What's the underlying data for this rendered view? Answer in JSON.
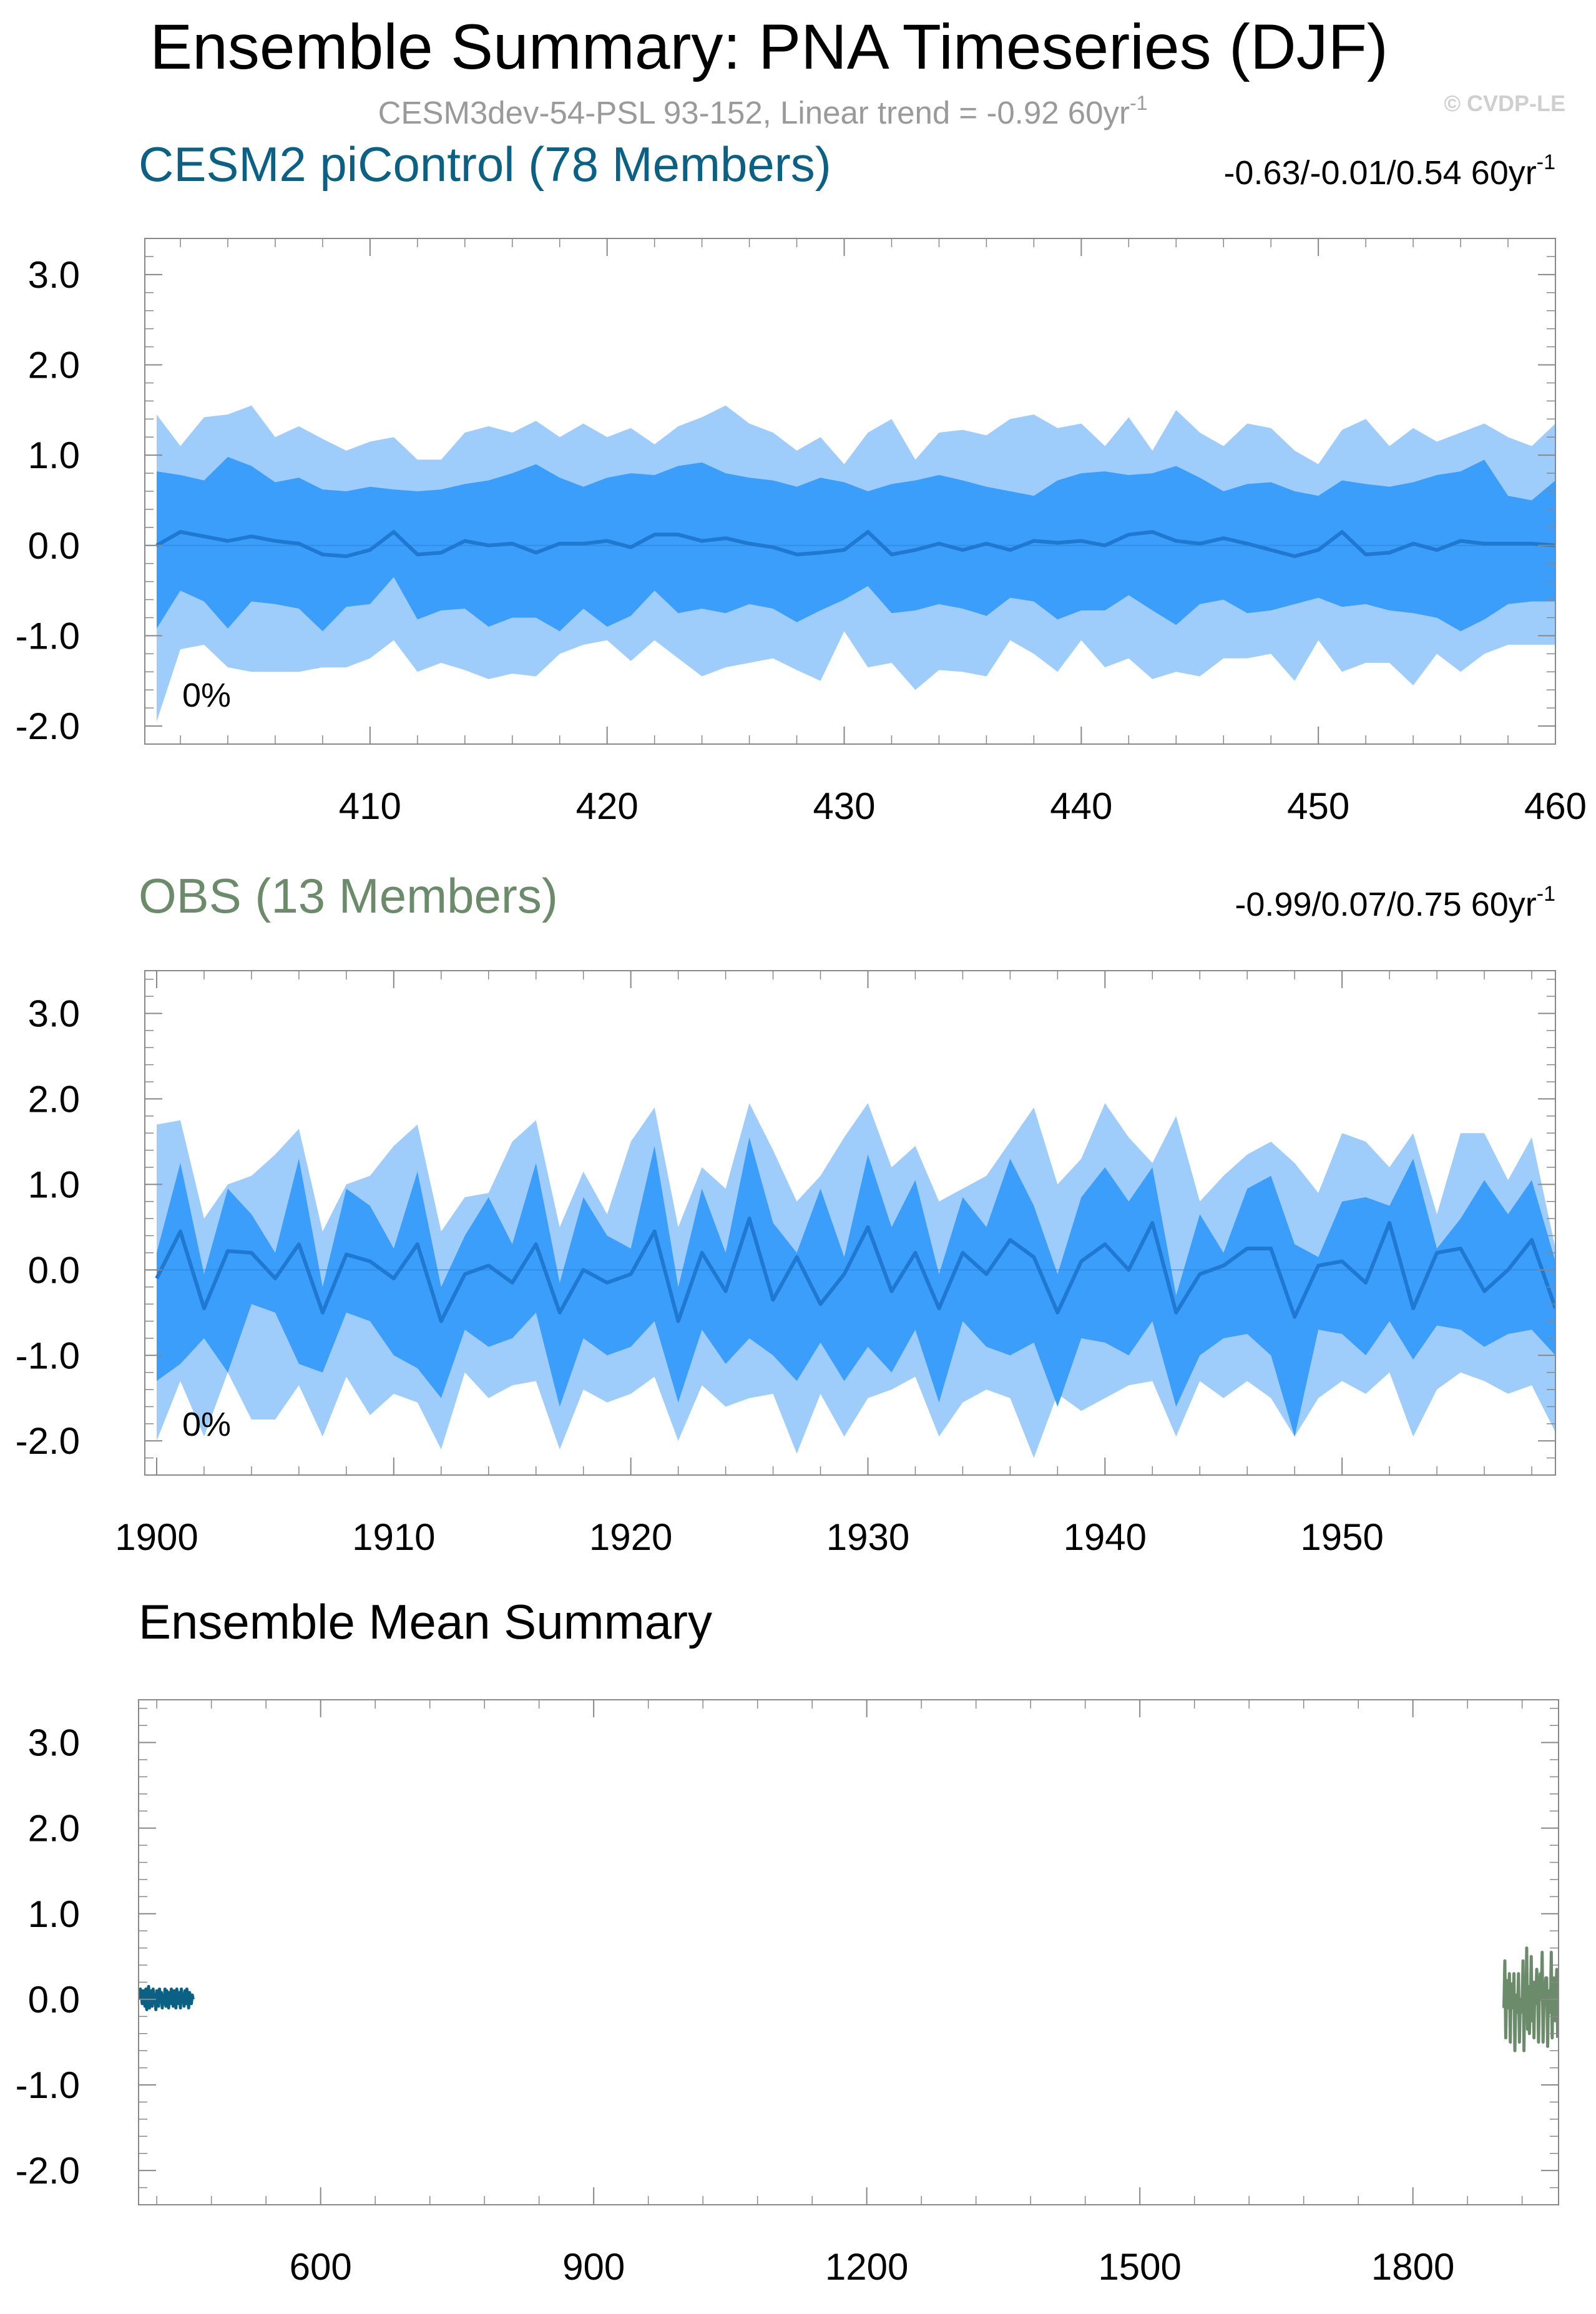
{
  "title": "Ensemble Summary: PNA Timeseries (DJF)",
  "subtitle": "CESM3dev-54-PSL 93-152, Linear trend = -0.92 60yr",
  "subtitle_sup": "-1",
  "watermark": "© CVDP-LE",
  "colors": {
    "outer_band": "#9fcdfb",
    "inner_band": "#3b9efa",
    "mean_line": "#1f78d1",
    "model": "#0b6183",
    "obs": "#6b8b6b",
    "frame": "#888888"
  },
  "chart_data": [
    {
      "type": "area",
      "title": "CESM2 piControl (78 Members)",
      "title_color": "#0b6183",
      "trend_text": "-0.63/-0.01/0.54 60yr",
      "trend_sup": "-1",
      "percent_label": "0%",
      "x_start": 401,
      "x_step": 1,
      "xlim": [
        400.5,
        460
      ],
      "ylim": [
        -2.2,
        3.4
      ],
      "xticks": [
        "410",
        "420",
        "430",
        "440",
        "450",
        "460"
      ],
      "yticks": [
        "3.0",
        "2.0",
        "1.0",
        "0.0",
        "-1.0",
        "-2.0"
      ],
      "series": [
        {
          "values": [
            1.45,
            1.1,
            1.42,
            1.45,
            1.55,
            1.2,
            1.32,
            1.18,
            1.05,
            1.15,
            1.2,
            0.95,
            0.95,
            1.25,
            1.32,
            1.25,
            1.38,
            1.2,
            1.35,
            1.2,
            1.3,
            1.12,
            1.32,
            1.42,
            1.55,
            1.35,
            1.25,
            1.05,
            1.2,
            0.9,
            1.25,
            1.4,
            0.95,
            1.25,
            1.28,
            1.22,
            1.4,
            1.45,
            1.3,
            1.35,
            1.1,
            1.42,
            1.05,
            1.5,
            1.25,
            1.1,
            1.35,
            1.3,
            1.05,
            0.9,
            1.28,
            1.4,
            1.1,
            1.3,
            1.15,
            1.25,
            1.35,
            1.2,
            1.1,
            1.35
          ]
        },
        {
          "values": [
            0.82,
            0.78,
            0.72,
            0.98,
            0.88,
            0.7,
            0.75,
            0.62,
            0.6,
            0.65,
            0.62,
            0.6,
            0.62,
            0.68,
            0.72,
            0.8,
            0.9,
            0.75,
            0.65,
            0.75,
            0.8,
            0.78,
            0.88,
            0.92,
            0.8,
            0.75,
            0.72,
            0.65,
            0.75,
            0.7,
            0.6,
            0.68,
            0.72,
            0.78,
            0.72,
            0.65,
            0.6,
            0.55,
            0.72,
            0.8,
            0.82,
            0.78,
            0.8,
            0.88,
            0.75,
            0.6,
            0.68,
            0.7,
            0.6,
            0.55,
            0.72,
            0.68,
            0.65,
            0.7,
            0.78,
            0.82,
            0.95,
            0.55,
            0.5,
            0.72
          ]
        },
        {
          "values": [
            0.0,
            0.15,
            0.1,
            0.05,
            0.1,
            0.05,
            0.02,
            -0.1,
            -0.12,
            -0.05,
            0.15,
            -0.1,
            -0.08,
            0.05,
            0.0,
            0.02,
            -0.08,
            0.02,
            0.02,
            0.05,
            -0.02,
            0.12,
            0.12,
            0.05,
            0.08,
            0.02,
            -0.02,
            -0.1,
            -0.08,
            -0.05,
            0.15,
            -0.1,
            -0.05,
            0.02,
            -0.05,
            0.02,
            -0.05,
            0.05,
            0.03,
            0.05,
            0.0,
            0.12,
            0.15,
            0.05,
            0.02,
            0.08,
            0.02,
            -0.05,
            -0.12,
            -0.05,
            0.15,
            -0.1,
            -0.08,
            0.02,
            -0.05,
            0.05,
            0.02,
            0.02,
            0.02,
            0.0
          ]
        },
        {
          "values": [
            -0.92,
            -0.5,
            -0.62,
            -0.92,
            -0.62,
            -0.65,
            -0.7,
            -0.95,
            -0.68,
            -0.65,
            -0.35,
            -0.82,
            -0.72,
            -0.7,
            -0.9,
            -0.8,
            -0.8,
            -0.95,
            -0.7,
            -0.9,
            -0.78,
            -0.5,
            -0.75,
            -0.7,
            -0.75,
            -0.65,
            -0.7,
            -0.85,
            -0.72,
            -0.6,
            -0.45,
            -0.75,
            -0.72,
            -0.65,
            -0.7,
            -0.78,
            -0.58,
            -0.62,
            -0.82,
            -0.72,
            -0.72,
            -0.55,
            -0.72,
            -0.88,
            -0.65,
            -0.6,
            -0.75,
            -0.72,
            -0.65,
            -0.58,
            -0.68,
            -0.65,
            -0.72,
            -0.75,
            -0.8,
            -0.95,
            -0.82,
            -0.65,
            -0.62,
            -0.62
          ]
        },
        {
          "values": [
            -1.95,
            -1.15,
            -1.1,
            -1.35,
            -1.4,
            -1.4,
            -1.4,
            -1.35,
            -1.35,
            -1.25,
            -1.05,
            -1.4,
            -1.3,
            -1.38,
            -1.48,
            -1.42,
            -1.45,
            -1.2,
            -1.1,
            -1.05,
            -1.28,
            -1.05,
            -1.25,
            -1.45,
            -1.35,
            -1.3,
            -1.25,
            -1.38,
            -1.5,
            -0.95,
            -1.35,
            -1.3,
            -1.6,
            -1.38,
            -1.4,
            -1.45,
            -1.05,
            -1.2,
            -1.4,
            -1.05,
            -1.35,
            -1.25,
            -1.48,
            -1.4,
            -1.45,
            -1.25,
            -1.25,
            -1.2,
            -1.5,
            -1.05,
            -1.4,
            -1.3,
            -1.3,
            -1.55,
            -1.2,
            -1.4,
            -1.2,
            -1.1,
            -1.1,
            -1.1
          ]
        }
      ]
    },
    {
      "type": "area",
      "title": "OBS (13 Members)",
      "title_color": "#6b8b6b",
      "trend_text": "-0.99/0.07/0.75 60yr",
      "trend_sup": "-1",
      "percent_label": "0%",
      "x_start": 1900,
      "x_step": 1,
      "xlim": [
        1899.5,
        1959
      ],
      "ylim": [
        -2.4,
        3.5
      ],
      "xticks": [
        "1900",
        "1910",
        "1920",
        "1930",
        "1940",
        "1950"
      ],
      "yticks": [
        "3.0",
        "2.0",
        "1.0",
        "0.0",
        "-1.0",
        "-2.0"
      ],
      "series": [
        {
          "values": [
            1.7,
            1.75,
            0.6,
            1.0,
            1.1,
            1.35,
            1.65,
            0.45,
            1.0,
            1.1,
            1.45,
            1.7,
            0.45,
            0.85,
            0.9,
            1.5,
            1.75,
            0.5,
            1.15,
            0.65,
            1.5,
            1.9,
            0.5,
            1.2,
            0.95,
            1.95,
            1.4,
            0.8,
            1.1,
            1.55,
            1.95,
            1.2,
            1.45,
            0.8,
            0.95,
            1.1,
            1.5,
            1.9,
            1.0,
            1.3,
            1.95,
            1.55,
            1.25,
            1.8,
            0.8,
            1.1,
            1.35,
            1.5,
            1.25,
            0.9,
            1.6,
            1.5,
            1.2,
            1.6,
            0.65,
            1.6,
            1.6,
            1.05,
            1.55,
            0.25
          ]
        },
        {
          "values": [
            0.2,
            1.25,
            -0.05,
            0.95,
            0.65,
            0.2,
            1.3,
            -0.2,
            0.95,
            0.75,
            0.25,
            1.15,
            -0.2,
            0.4,
            0.85,
            0.3,
            1.25,
            -0.15,
            0.85,
            0.4,
            0.25,
            1.45,
            -0.2,
            0.95,
            0.2,
            1.55,
            0.55,
            0.2,
            0.95,
            0.15,
            1.35,
            0.5,
            1.05,
            -0.05,
            0.85,
            0.5,
            1.3,
            0.75,
            -0.05,
            0.85,
            1.2,
            0.8,
            1.2,
            -0.3,
            0.65,
            0.2,
            0.95,
            1.1,
            0.3,
            0.15,
            0.8,
            0.85,
            0.75,
            1.3,
            0.25,
            0.6,
            1.05,
            0.65,
            1.05,
            0.1
          ]
        },
        {
          "values": [
            -0.1,
            0.45,
            -0.45,
            0.22,
            0.2,
            -0.1,
            0.3,
            -0.5,
            0.18,
            0.1,
            -0.1,
            0.3,
            -0.6,
            -0.05,
            0.05,
            -0.15,
            0.3,
            -0.5,
            0.0,
            -0.15,
            -0.05,
            0.45,
            -0.6,
            0.2,
            -0.25,
            0.6,
            -0.35,
            0.15,
            -0.4,
            -0.05,
            0.5,
            -0.25,
            0.2,
            -0.45,
            0.2,
            -0.05,
            0.35,
            0.15,
            -0.5,
            0.1,
            0.3,
            0.0,
            0.55,
            -0.5,
            -0.05,
            0.05,
            0.25,
            0.25,
            -0.55,
            0.05,
            0.1,
            -0.15,
            0.55,
            -0.45,
            0.2,
            0.25,
            -0.25,
            0.0,
            0.35,
            -0.45
          ]
        },
        {
          "values": [
            -1.3,
            -1.1,
            -0.8,
            -1.2,
            -0.4,
            -0.5,
            -1.1,
            -1.2,
            -0.5,
            -0.6,
            -1.0,
            -1.15,
            -1.5,
            -0.7,
            -0.9,
            -0.8,
            -0.5,
            -1.6,
            -0.8,
            -1.0,
            -0.9,
            -0.6,
            -1.55,
            -0.7,
            -1.1,
            -0.8,
            -1.0,
            -1.3,
            -0.85,
            -1.3,
            -0.9,
            -1.2,
            -0.7,
            -1.55,
            -0.6,
            -0.9,
            -1.0,
            -0.85,
            -1.6,
            -0.8,
            -0.85,
            -1.0,
            -0.6,
            -1.6,
            -1.0,
            -0.8,
            -0.75,
            -1.0,
            -1.95,
            -0.7,
            -0.75,
            -1.0,
            -0.6,
            -1.05,
            -0.65,
            -0.7,
            -0.9,
            -0.75,
            -0.7,
            -1.0
          ]
        },
        {
          "values": [
            -2.0,
            -1.3,
            -1.95,
            -1.2,
            -1.75,
            -1.75,
            -1.35,
            -1.95,
            -1.25,
            -1.7,
            -1.45,
            -1.55,
            -2.1,
            -1.2,
            -1.5,
            -1.35,
            -1.3,
            -2.1,
            -1.4,
            -1.55,
            -1.45,
            -1.25,
            -2.0,
            -1.35,
            -1.6,
            -1.5,
            -1.45,
            -2.15,
            -1.45,
            -1.95,
            -1.5,
            -1.4,
            -1.25,
            -1.95,
            -1.55,
            -1.4,
            -1.5,
            -2.2,
            -1.45,
            -1.65,
            -1.5,
            -1.35,
            -1.3,
            -1.95,
            -1.3,
            -1.5,
            -1.3,
            -1.5,
            -1.95,
            -1.5,
            -1.3,
            -1.45,
            -1.2,
            -1.95,
            -1.4,
            -1.2,
            -1.3,
            -1.45,
            -1.35,
            -1.9
          ]
        }
      ]
    },
    {
      "type": "line",
      "title": "Ensemble Mean Summary",
      "title_color": "#000000",
      "xlim": [
        400,
        1960
      ],
      "ylim": [
        -2.4,
        3.5
      ],
      "xticks": [
        "600",
        "900",
        "1200",
        "1500",
        "1800"
      ],
      "yticks": [
        "3.0",
        "2.0",
        "1.0",
        "0.0",
        "-1.0",
        "-2.0"
      ],
      "series": [
        {
          "x_start": 401,
          "x_step": 1,
          "color": "#0b6183",
          "values": [
            0.0,
            0.12,
            0.08,
            -0.05,
            0.1,
            0.05,
            -0.08,
            0.12,
            -0.12,
            0.05,
            0.15,
            -0.1,
            -0.05,
            0.1,
            -0.08,
            0.12,
            -0.02,
            0.05,
            -0.12,
            0.1,
            0.02,
            -0.08,
            0.12,
            0.0,
            0.08,
            -0.1,
            0.05,
            -0.05,
            0.12,
            -0.08,
            0.1,
            0.02,
            -0.1,
            0.08,
            -0.05,
            0.12,
            0.0,
            -0.08,
            0.1,
            0.05,
            -0.1,
            0.12,
            0.02,
            -0.05,
            0.08,
            -0.1,
            0.12,
            0.0,
            0.05,
            -0.08,
            0.1,
            -0.05,
            0.12,
            0.0,
            -0.1,
            0.08,
            0.02,
            -0.05,
            0.05,
            0.0
          ]
        },
        {
          "x_start": 1900,
          "x_step": 1,
          "color": "#6b8b6b",
          "values": [
            -0.1,
            0.45,
            -0.45,
            0.22,
            0.2,
            -0.1,
            0.3,
            -0.5,
            0.18,
            0.1,
            -0.1,
            0.3,
            -0.6,
            -0.05,
            0.05,
            -0.15,
            0.3,
            -0.5,
            0.0,
            -0.15,
            -0.05,
            0.45,
            -0.6,
            0.2,
            -0.25,
            0.6,
            -0.35,
            0.15,
            -0.4,
            -0.05,
            0.5,
            -0.25,
            0.2,
            -0.45,
            0.2,
            -0.05,
            0.35,
            0.15,
            -0.5,
            0.1,
            0.3,
            0.0,
            0.55,
            -0.5,
            -0.05,
            0.05,
            0.25,
            0.25,
            -0.55,
            0.05,
            0.1,
            -0.15,
            0.55,
            -0.45,
            0.2,
            0.25,
            -0.25,
            0.0,
            0.35,
            -0.45
          ]
        }
      ]
    }
  ]
}
